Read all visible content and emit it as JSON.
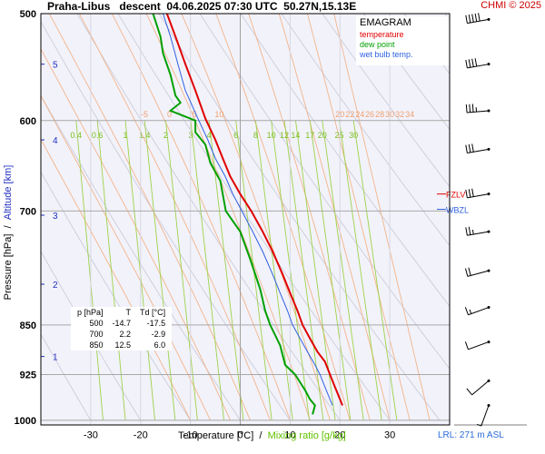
{
  "header": {
    "station": "Praha-Libus",
    "mode": "descent",
    "datetime": "04.06.2025 07:30 UTC",
    "coords": "50.27N,15.13E",
    "credit": "CHMI © 2025"
  },
  "legend": {
    "title": "EMAGRAM",
    "temperature": "temperature",
    "dew_point": "dew point",
    "wet_bulb": "wet bulb temp."
  },
  "axes": {
    "ylabel_pressure": "Pressure [hPa]",
    "ylabel_sep": "/",
    "ylabel_altitude": "Altitude [km]",
    "xlabel_temp": "Temperature [°C]",
    "xlabel_sep": "/",
    "xlabel_mix": "Mixing ratio [g/kg]",
    "lrl": "LRL: 271 m ASL"
  },
  "table": {
    "headers": [
      "p [hPa]",
      "T",
      "Td [°C]"
    ],
    "rows": [
      [
        "500",
        "-14.7",
        "-17.5"
      ],
      [
        "700",
        "2.2",
        "-2.9"
      ],
      [
        "850",
        "12.5",
        "6.0"
      ]
    ]
  },
  "chart_data": {
    "type": "line",
    "title": "EMAGRAM",
    "xlabel": "Temperature [°C]",
    "ylabel": "Pressure [hPa]",
    "xlim": [
      -40,
      42
    ],
    "ylim": [
      1008,
      500
    ],
    "y_scale": "log",
    "pressure_ticks": [
      500,
      600,
      700,
      850,
      925,
      1000
    ],
    "temp_ticks": [
      -30,
      -20,
      -10,
      0,
      10,
      20,
      30
    ],
    "altitude_ticks": [
      {
        "label": "1",
        "p": 897
      },
      {
        "label": "2",
        "p": 793
      },
      {
        "label": "3",
        "p": 705
      },
      {
        "label": "4",
        "p": 620
      },
      {
        "label": "5",
        "p": 545
      }
    ],
    "mixing_ratio_lines": [
      0.4,
      0.6,
      1,
      1.4,
      2,
      3,
      4,
      6,
      8,
      10,
      12,
      14,
      17,
      20,
      25,
      30
    ],
    "temp_labels_at_600": [
      -5,
      0,
      5,
      10,
      20,
      22,
      24,
      26,
      28,
      30,
      32,
      34
    ],
    "level_markers": [
      {
        "label": "FZLV",
        "p": 680
      },
      {
        "label": "WBZL",
        "p": 698
      }
    ],
    "series": [
      {
        "name": "temperature",
        "color": "#e00000",
        "points": [
          [
            -14.7,
            500
          ],
          [
            -13.0,
            520
          ],
          [
            -11.0,
            545
          ],
          [
            -9.0,
            570
          ],
          [
            -7.0,
            598
          ],
          [
            -5.0,
            620
          ],
          [
            -3.5,
            640
          ],
          [
            -2.0,
            660
          ],
          [
            0.0,
            680
          ],
          [
            2.2,
            700
          ],
          [
            4.5,
            725
          ],
          [
            6.5,
            750
          ],
          [
            8.5,
            780
          ],
          [
            10.0,
            805
          ],
          [
            11.5,
            830
          ],
          [
            12.5,
            850
          ],
          [
            14.0,
            870
          ],
          [
            15.5,
            890
          ],
          [
            17.0,
            905
          ],
          [
            18.0,
            925
          ],
          [
            19.0,
            945
          ],
          [
            20.0,
            965
          ],
          [
            20.5,
            975
          ]
        ]
      },
      {
        "name": "dew point",
        "color": "#00a000",
        "points": [
          [
            -17.5,
            500
          ],
          [
            -16.0,
            520
          ],
          [
            -15.5,
            535
          ],
          [
            -14.0,
            555
          ],
          [
            -13.0,
            575
          ],
          [
            -12.0,
            582
          ],
          [
            -14.0,
            590
          ],
          [
            -9.0,
            600
          ],
          [
            -9.0,
            612
          ],
          [
            -7.0,
            625
          ],
          [
            -6.0,
            645
          ],
          [
            -4.0,
            665
          ],
          [
            -2.9,
            700
          ],
          [
            0.0,
            725
          ],
          [
            2.0,
            760
          ],
          [
            4.0,
            800
          ],
          [
            5.0,
            830
          ],
          [
            6.0,
            850
          ],
          [
            8.0,
            880
          ],
          [
            9.0,
            910
          ],
          [
            11.0,
            925
          ],
          [
            13.0,
            950
          ],
          [
            14.0,
            965
          ],
          [
            15.0,
            975
          ],
          [
            14.5,
            990
          ]
        ]
      },
      {
        "name": "wet bulb temp.",
        "color": "#3060e0",
        "points": [
          [
            -15.5,
            500
          ],
          [
            -14.0,
            520
          ],
          [
            -12.5,
            545
          ],
          [
            -11.0,
            570
          ],
          [
            -8.5,
            598
          ],
          [
            -6.5,
            620
          ],
          [
            -5.0,
            640
          ],
          [
            -3.0,
            660
          ],
          [
            -1.5,
            680
          ],
          [
            0.3,
            700
          ],
          [
            2.5,
            725
          ],
          [
            4.5,
            750
          ],
          [
            6.5,
            780
          ],
          [
            8.0,
            805
          ],
          [
            9.5,
            830
          ],
          [
            10.5,
            850
          ],
          [
            12.0,
            870
          ],
          [
            13.5,
            890
          ],
          [
            15.0,
            910
          ],
          [
            16.0,
            925
          ],
          [
            17.0,
            945
          ],
          [
            18.0,
            965
          ],
          [
            18.5,
            975
          ]
        ]
      }
    ],
    "wind_barbs": [
      {
        "p": 505,
        "dir": 260,
        "kt": 50
      },
      {
        "p": 545,
        "dir": 260,
        "kt": 40
      },
      {
        "p": 590,
        "dir": 265,
        "kt": 35
      },
      {
        "p": 630,
        "dir": 260,
        "kt": 30
      },
      {
        "p": 680,
        "dir": 260,
        "kt": 30
      },
      {
        "p": 725,
        "dir": 260,
        "kt": 25
      },
      {
        "p": 775,
        "dir": 255,
        "kt": 20
      },
      {
        "p": 825,
        "dir": 250,
        "kt": 15
      },
      {
        "p": 875,
        "dir": 250,
        "kt": 10
      },
      {
        "p": 935,
        "dir": 230,
        "kt": 10
      },
      {
        "p": 975,
        "dir": 200,
        "kt": 5
      }
    ]
  }
}
